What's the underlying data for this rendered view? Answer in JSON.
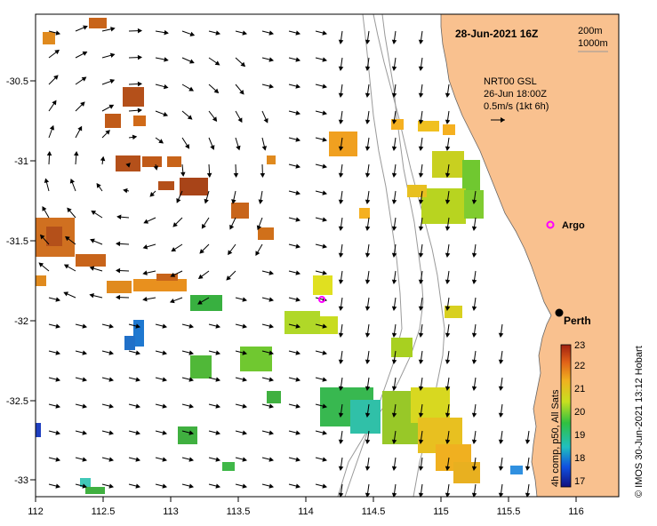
{
  "title": "28-Jun-2021 16Z",
  "isobaths": [
    "200m",
    "1000m"
  ],
  "current_info": {
    "line1": "NRT00 GSL",
    "line2": "26-Jun 18:00Z",
    "line3": "0.5m/s (1kt 6h)"
  },
  "places": {
    "perth": "Perth",
    "argo": "Argo"
  },
  "colorbar": {
    "min": 17,
    "max": 23,
    "ticks": [
      "23",
      "22",
      "21",
      "20",
      "19",
      "18",
      "17"
    ],
    "label": "4h comp, p50, All Sats"
  },
  "credit": "© IMOS 30-Jun-2021 13:12 Hobart",
  "axes": {
    "x_ticks": [
      "112",
      "112.5",
      "113",
      "113.5",
      "114",
      "114.5",
      "115",
      "115.5",
      "116"
    ],
    "y_ticks": [
      "-30.5",
      "-31",
      "-31.5",
      "-32",
      "-32.5",
      "-33"
    ]
  },
  "colors": {
    "land": "#f9c18f",
    "argo_marker": "#ff00ff",
    "perth_marker": "#000000"
  }
}
